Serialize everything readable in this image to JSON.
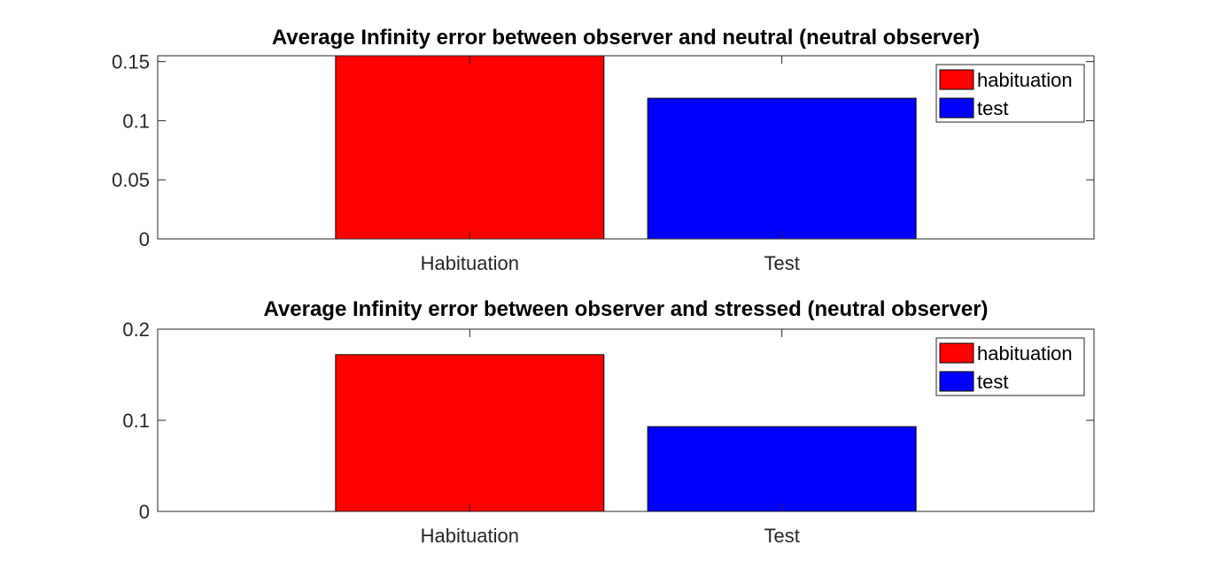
{
  "chart_data": [
    {
      "type": "bar",
      "title": "Average Infinity error between observer and neutral (neutral observer)",
      "categories": [
        "Habituation",
        "Test"
      ],
      "series": [
        {
          "name": "habituation",
          "values": [
            0.155,
            null
          ]
        },
        {
          "name": "test",
          "values": [
            null,
            0.119
          ]
        }
      ],
      "ylim": [
        0,
        0.155
      ],
      "yticks": [
        0,
        0.05,
        0.1,
        0.15
      ],
      "ytick_labels": [
        "0",
        "0.05",
        "0.1",
        "0.15"
      ],
      "xlabel": "",
      "ylabel": "",
      "legend": {
        "position": "top-right",
        "entries": [
          "habituation",
          "test"
        ]
      },
      "colors": {
        "habituation": "#ff0000",
        "test": "#0000ff"
      },
      "grid": false
    },
    {
      "type": "bar",
      "title": "Average Infinity error between observer and stressed (neutral observer)",
      "categories": [
        "Habituation",
        "Test"
      ],
      "series": [
        {
          "name": "habituation",
          "values": [
            0.172,
            null
          ]
        },
        {
          "name": "test",
          "values": [
            null,
            0.093
          ]
        }
      ],
      "ylim": [
        0,
        0.2
      ],
      "yticks": [
        0,
        0.1,
        0.2
      ],
      "ytick_labels": [
        "0",
        "0.1",
        "0.2"
      ],
      "xlabel": "",
      "ylabel": "",
      "legend": {
        "position": "top-right",
        "entries": [
          "habituation",
          "test"
        ]
      },
      "colors": {
        "habituation": "#ff0000",
        "test": "#0000ff"
      },
      "grid": false
    }
  ]
}
